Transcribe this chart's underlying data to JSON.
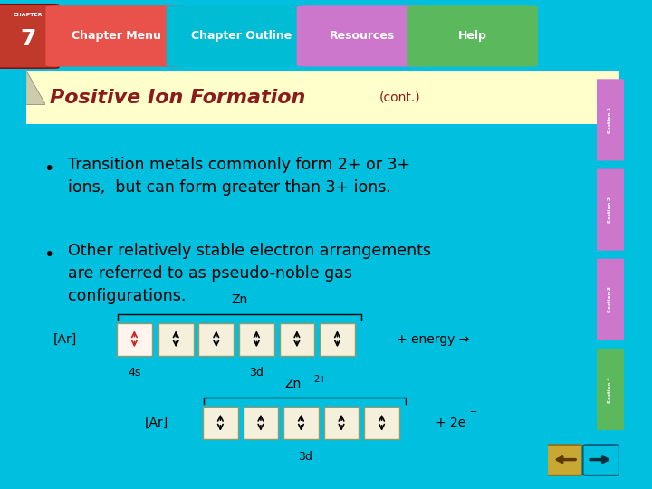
{
  "bg_color": "#ffffff",
  "top_bar_color": "#00BFDF",
  "nav_bg": "#1a1a2e",
  "chapter_box_color": "#c0392b",
  "chapter_menu_color": "#e74c3c",
  "outline_btn_color": "#00BCD4",
  "resources_btn_color": "#CC77CC",
  "help_btn_color": "#5cb85c",
  "title_color": "#8B1A1A",
  "title_bg": "#FFFFCC",
  "slide_bg": "#ffffff",
  "title_text": "Positive Ion Formation",
  "title_cont": "(cont.)",
  "bullet1": "Transition metals commonly form 2+ or 3+\nions,  but can form greater than 3+ ions.",
  "bullet2": "Other relatively stable electron arrangements\nare referred to as pseudo-noble gas\nconfigurations.",
  "right_sidebar_color": "#CC77CC",
  "section_labels": [
    "Section 1",
    "Section 2",
    "Section 3",
    "Section 4"
  ],
  "section_colors": [
    "#CC77CC",
    "#CC77CC",
    "#CC77CC",
    "#5cb85c"
  ]
}
